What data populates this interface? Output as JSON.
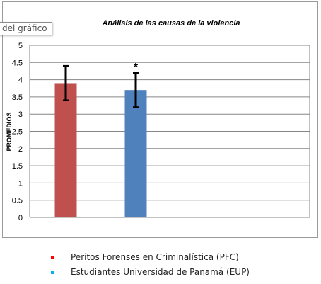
{
  "tooltip": {
    "text": "del gráfico"
  },
  "colors": {
    "series1": "#c0504d",
    "series2": "#4f81bd",
    "error_bar": "#000000",
    "grid": "#868686"
  },
  "legend": {
    "items": [
      {
        "label": "Peritos Forenses en Criminalística (PFC)",
        "color": "#ff0000"
      },
      {
        "label": "Estudiantes Universidad de Panamá (EUP)",
        "color": "#00b0f0"
      }
    ]
  },
  "chart_data": {
    "type": "bar",
    "title": "Análisis de las causas de la violencia",
    "xlabel": "",
    "ylabel": "PROMEDIOS",
    "ylim": [
      0,
      5
    ],
    "yticks": [
      0,
      0.5,
      1,
      1.5,
      2,
      2.5,
      3,
      3.5,
      4,
      4.5,
      5
    ],
    "ytick_labels": [
      "0",
      "0.5",
      "1",
      "1.5",
      "2",
      "2.5",
      "3",
      "3.5",
      "4",
      "4.5",
      "5"
    ],
    "grid": true,
    "series": [
      {
        "name": "Peritos Forenses en Criminalística (PFC)",
        "value": 3.9,
        "error_low": 3.4,
        "error_high": 4.4
      },
      {
        "name": "Estudiantes Universidad de Panamá (EUP)",
        "value": 3.7,
        "error_low": 3.2,
        "error_high": 4.2,
        "annotation": "*"
      }
    ]
  }
}
